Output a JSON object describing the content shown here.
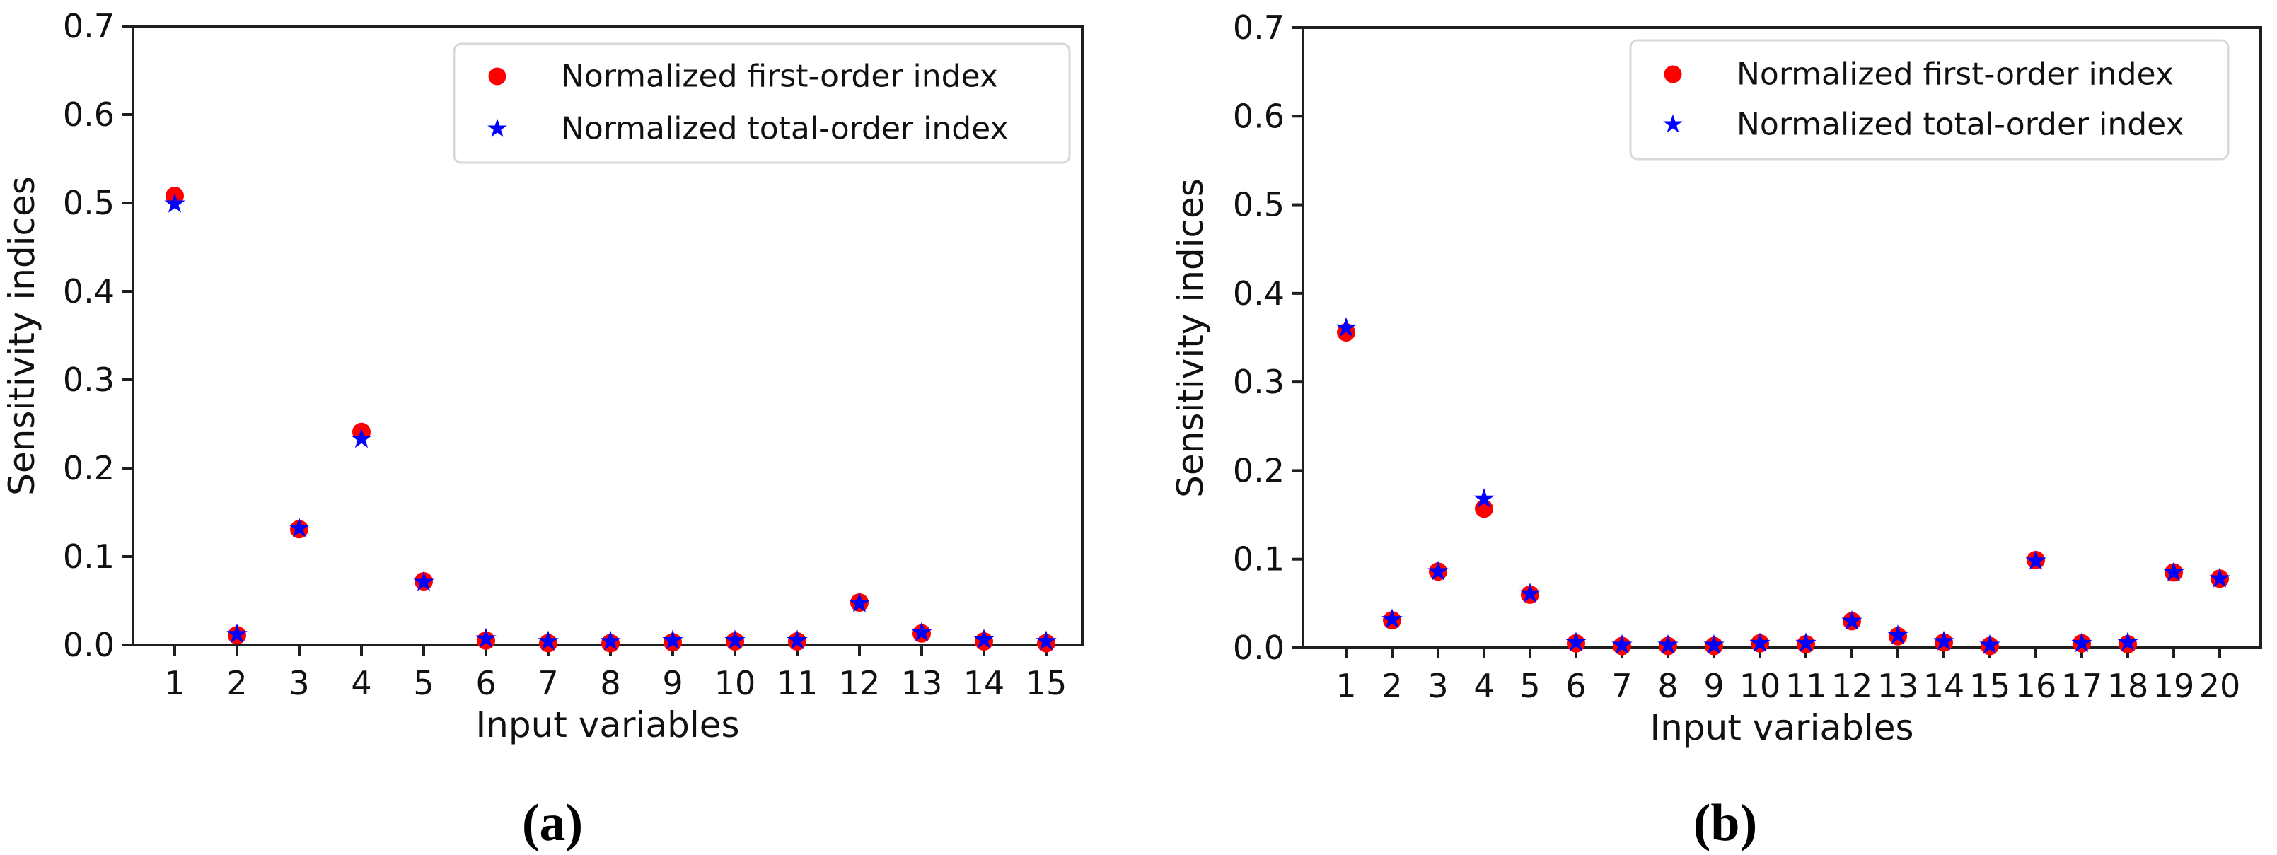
{
  "figure": {
    "background": "#ffffff",
    "description": "Two-panel scatter figure of normalized sensitivity indices"
  },
  "colors": {
    "first_order_marker": "#ff0000",
    "total_order_marker": "#0000ff",
    "axis": "#1f1f1f",
    "tick_text": "#111111",
    "legend_border": "#d8d8d8",
    "legend_background": "#ffffff"
  },
  "chart_data": [
    {
      "id": "a",
      "type": "scatter",
      "caption": "(a)",
      "xlabel": "Input variables",
      "ylabel": "Sensitivity indices",
      "ylim": [
        0.0,
        0.7
      ],
      "grid": false,
      "legend_position": "upper right",
      "x": [
        1,
        2,
        3,
        4,
        5,
        6,
        7,
        8,
        9,
        10,
        11,
        12,
        13,
        14,
        15
      ],
      "xticklabels": [
        "1",
        "2",
        "3",
        "4",
        "5",
        "6",
        "7",
        "8",
        "9",
        "10",
        "11",
        "12",
        "13",
        "14",
        "15"
      ],
      "yticklabels": [
        "0.0",
        "0.1",
        "0.2",
        "0.3",
        "0.4",
        "0.5",
        "0.6",
        "0.7"
      ],
      "series": [
        {
          "name": "Normalized first-order index",
          "marker": "circle",
          "color": "#ff0000",
          "values": [
            0.508,
            0.011,
            0.131,
            0.241,
            0.072,
            0.005,
            0.002,
            0.002,
            0.003,
            0.004,
            0.004,
            0.048,
            0.013,
            0.004,
            0.002
          ]
        },
        {
          "name": "Normalized total-order index",
          "marker": "star",
          "color": "#0000ff",
          "values": [
            0.499,
            0.012,
            0.132,
            0.233,
            0.071,
            0.007,
            0.004,
            0.004,
            0.005,
            0.005,
            0.005,
            0.047,
            0.014,
            0.006,
            0.004
          ]
        }
      ]
    },
    {
      "id": "b",
      "type": "scatter",
      "caption": "(b)",
      "xlabel": "Input variables",
      "ylabel": "Sensitivity indices",
      "ylim": [
        0.0,
        0.7
      ],
      "grid": false,
      "legend_position": "upper right",
      "x": [
        1,
        2,
        3,
        4,
        5,
        6,
        7,
        8,
        9,
        10,
        11,
        12,
        13,
        14,
        15,
        16,
        17,
        18,
        19,
        20
      ],
      "xticklabels": [
        "1",
        "2",
        "3",
        "4",
        "5",
        "6",
        "7",
        "8",
        "9",
        "10",
        "11",
        "12",
        "13",
        "14",
        "15",
        "16",
        "17",
        "18",
        "19",
        "20"
      ],
      "yticklabels": [
        "0.0",
        "0.1",
        "0.2",
        "0.3",
        "0.4",
        "0.5",
        "0.6",
        "0.7"
      ],
      "series": [
        {
          "name": "Normalized first-order index",
          "marker": "circle",
          "color": "#ff0000",
          "values": [
            0.356,
            0.031,
            0.086,
            0.157,
            0.06,
            0.005,
            0.002,
            0.002,
            0.002,
            0.005,
            0.004,
            0.03,
            0.013,
            0.006,
            0.002,
            0.099,
            0.005,
            0.004,
            0.085,
            0.078
          ]
        },
        {
          "name": "Normalized total-order index",
          "marker": "star",
          "color": "#0000ff",
          "values": [
            0.361,
            0.032,
            0.086,
            0.168,
            0.061,
            0.006,
            0.003,
            0.003,
            0.003,
            0.005,
            0.005,
            0.03,
            0.014,
            0.007,
            0.003,
            0.098,
            0.005,
            0.006,
            0.085,
            0.078
          ]
        }
      ]
    }
  ]
}
